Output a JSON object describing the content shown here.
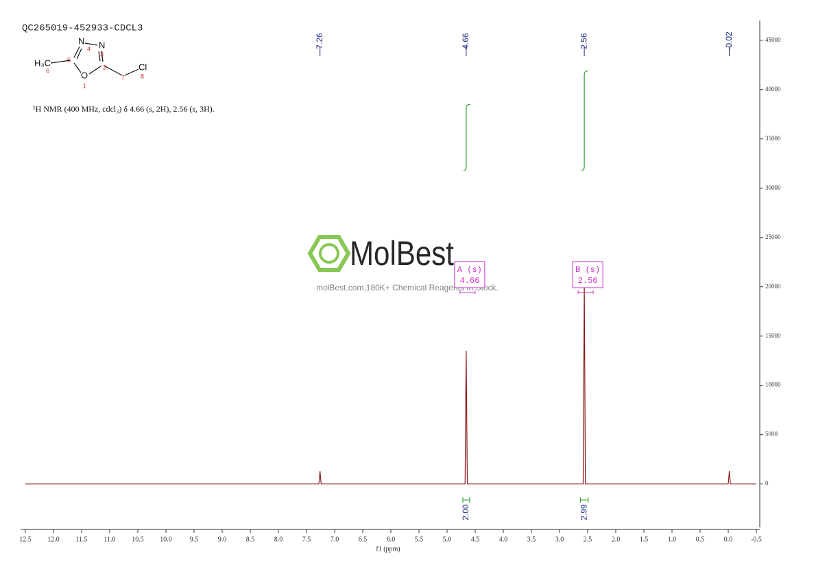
{
  "chart_data": {
    "type": "line",
    "title": "QC265019-452933-CDCL3",
    "subtitle": "¹H NMR (400 MHz, cdcl₃) δ 4.66 (s, 2H), 2.56 (s, 3H).",
    "xlabel": "f1 (ppm)",
    "structure": {
      "atoms": [
        "H₃C",
        "N",
        "N",
        "O",
        "Cl"
      ],
      "atom_numbers": [
        "4",
        "3",
        "5",
        "2",
        "6",
        "1",
        "7",
        "8"
      ]
    },
    "watermark": {
      "brand": "MolBest",
      "tagline": "molBest.com,180K+ Chemical Reagents In Stock."
    },
    "series": [
      {
        "name": "spectrum",
        "color": "#8b1a1a",
        "x": [
          12.5,
          7.28,
          7.26,
          7.24,
          4.68,
          4.66,
          4.64,
          2.58,
          2.56,
          2.54,
          0.0,
          -0.02,
          -0.04,
          -0.5
        ],
        "values": [
          0,
          0,
          1300,
          0,
          0,
          13500,
          0,
          0,
          20500,
          0,
          0,
          1300,
          0,
          0
        ]
      }
    ],
    "peak_labels": [
      7.26,
      4.66,
      2.56,
      -0.02
    ],
    "peak_label_color": "#1a237e",
    "multiplets": [
      {
        "name": "A (s)",
        "shift": 4.66
      },
      {
        "name": "B (s)",
        "shift": 2.56
      }
    ],
    "multiplet_color": "#cc33cc",
    "integrals": [
      {
        "from": 4.72,
        "to": 4.6,
        "curve": [
          31800,
          38500
        ],
        "value": {
          "value": 2,
          "label": "2.00"
        }
      },
      {
        "from": 2.63,
        "to": 2.49,
        "curve": [
          31800,
          41900
        ],
        "value": 2.99
      }
    ],
    "integral_color": "#2e9e2e",
    "xlim": [
      12.5,
      -0.5
    ],
    "xticks": [
      12.5,
      {
        "value": 12,
        "label": "12.0"
      },
      11.5,
      {
        "value": 11,
        "label": "11.0"
      },
      10.5,
      {
        "value": 10,
        "label": "10.0"
      },
      9.5,
      {
        "value": 9,
        "label": "9.0"
      },
      8.5,
      {
        "value": 8,
        "label": "8.0"
      },
      7.5,
      {
        "value": 7,
        "label": "7.0"
      },
      6.5,
      {
        "value": 6,
        "label": "6.0"
      },
      5.5,
      {
        "value": 5,
        "label": "5.0"
      },
      4.5,
      {
        "value": 4,
        "label": "4.0"
      },
      3.5,
      {
        "value": 3,
        "label": "3.0"
      },
      2.5,
      {
        "value": 2,
        "label": "2.0"
      },
      1.5,
      {
        "value": 1,
        "label": "1.0"
      },
      0.5,
      {
        "value": 0,
        "label": "0.0"
      },
      -0.5
    ],
    "ylim": [
      -4400,
      47000
    ],
    "yticks": [
      0,
      5000,
      10000,
      15000,
      20000,
      25000,
      30000,
      35000,
      40000,
      45000
    ],
    "grid": false
  }
}
